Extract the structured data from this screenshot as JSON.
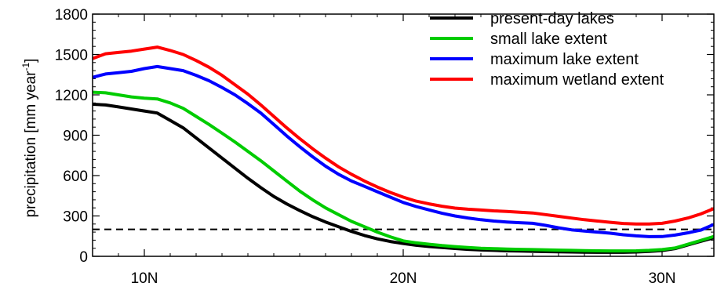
{
  "chart_data": {
    "type": "line",
    "title": "",
    "xlabel": "",
    "ylabel": "precipitation [mm year",
    "ylabel_sup": "-1",
    "ylabel_end": "]",
    "xlim": [
      8,
      32
    ],
    "ylim": [
      0,
      1800
    ],
    "y_ticks": [
      0,
      300,
      600,
      900,
      1200,
      1500,
      1800
    ],
    "y_tick_labels": [
      "0",
      "300",
      "600",
      "900",
      "1200",
      "1500",
      "1800"
    ],
    "x_ticks": [
      10,
      20,
      30
    ],
    "x_tick_labels": [
      "10N",
      "20N",
      "30N"
    ],
    "grid": false,
    "legend_position": "top-right",
    "reference_line": {
      "y": 200,
      "style": "dashed",
      "color": "#000000"
    },
    "x": [
      8,
      8.5,
      9,
      9.5,
      10,
      10.5,
      11,
      11.5,
      12,
      12.5,
      13,
      13.5,
      14,
      14.5,
      15,
      15.5,
      16,
      16.5,
      17,
      17.5,
      18,
      18.5,
      19,
      19.5,
      20,
      20.5,
      21,
      21.5,
      22,
      22.5,
      23,
      23.5,
      24,
      24.5,
      25,
      25.5,
      26,
      26.5,
      27,
      27.5,
      28,
      28.5,
      29,
      29.5,
      30,
      30.5,
      31,
      31.5,
      32
    ],
    "series": [
      {
        "name": "present-day lakes",
        "color": "#000000",
        "values": [
          1130,
          1125,
          1110,
          1095,
          1080,
          1065,
          1010,
          955,
          880,
          805,
          730,
          655,
          580,
          510,
          445,
          390,
          340,
          295,
          255,
          220,
          185,
          155,
          130,
          110,
          95,
          82,
          73,
          65,
          58,
          52,
          47,
          44,
          41,
          39,
          37,
          35,
          33,
          32,
          31,
          30,
          30,
          30,
          32,
          36,
          43,
          57,
          85,
          112,
          138
        ]
      },
      {
        "name": "small lake extent",
        "color": "#00cc00",
        "values": [
          1220,
          1215,
          1200,
          1185,
          1175,
          1170,
          1140,
          1100,
          1040,
          980,
          915,
          850,
          780,
          710,
          635,
          560,
          485,
          420,
          360,
          310,
          260,
          220,
          180,
          145,
          115,
          100,
          90,
          80,
          72,
          65,
          60,
          57,
          54,
          52,
          50,
          48,
          46,
          44,
          42,
          41,
          40,
          40,
          41,
          44,
          50,
          62,
          90,
          118,
          148
        ]
      },
      {
        "name": "maximum lake extent",
        "color": "#0000ff",
        "values": [
          1330,
          1355,
          1365,
          1375,
          1395,
          1410,
          1395,
          1380,
          1345,
          1305,
          1255,
          1200,
          1135,
          1065,
          980,
          895,
          815,
          740,
          670,
          610,
          560,
          520,
          480,
          440,
          400,
          370,
          345,
          320,
          300,
          285,
          272,
          262,
          255,
          250,
          245,
          230,
          212,
          197,
          188,
          180,
          172,
          160,
          152,
          146,
          147,
          158,
          175,
          195,
          237
        ]
      },
      {
        "name": "maximum wetland extent",
        "color": "#ff0000",
        "values": [
          1470,
          1505,
          1515,
          1525,
          1540,
          1555,
          1530,
          1500,
          1455,
          1405,
          1345,
          1275,
          1205,
          1125,
          1040,
          955,
          875,
          800,
          730,
          665,
          610,
          560,
          515,
          475,
          440,
          410,
          390,
          372,
          358,
          350,
          344,
          338,
          334,
          328,
          322,
          310,
          297,
          284,
          272,
          262,
          253,
          244,
          240,
          240,
          245,
          262,
          285,
          315,
          355
        ]
      }
    ]
  }
}
